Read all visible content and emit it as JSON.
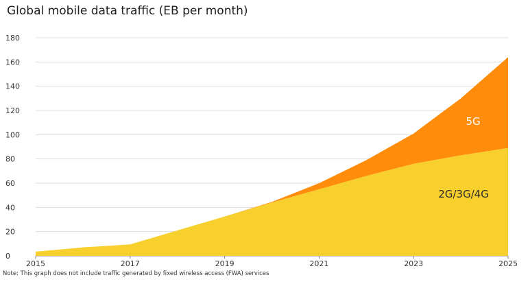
{
  "chart_data": {
    "type": "area",
    "stacked": true,
    "title": "Global mobile data traffic (EB per month)",
    "note": "Note: This graph does not include traffic generated by fixed wireless access (FWA) services",
    "x": [
      2015,
      2016,
      2017,
      2018,
      2019,
      2020,
      2021,
      2022,
      2023,
      2024,
      2025
    ],
    "x_ticks": [
      "2015",
      "2017",
      "2019",
      "2021",
      "2023",
      "2025"
    ],
    "y_ticks": [
      "0",
      "20",
      "40",
      "60",
      "80",
      "100",
      "120",
      "140",
      "160",
      "180"
    ],
    "ylim": [
      0,
      180
    ],
    "xlim": [
      2015,
      2025
    ],
    "grid": true,
    "series": [
      {
        "name": "2G/3G/4G",
        "color": "#f7d02e",
        "values": [
          3.5,
          7,
          9.5,
          21,
          32.5,
          44,
          55,
          66,
          76,
          83,
          89
        ]
      },
      {
        "name": "5G",
        "color": "#ff8c0a",
        "values": [
          0,
          0,
          0,
          0,
          0,
          0.5,
          5,
          13,
          25,
          47,
          75
        ]
      }
    ]
  }
}
